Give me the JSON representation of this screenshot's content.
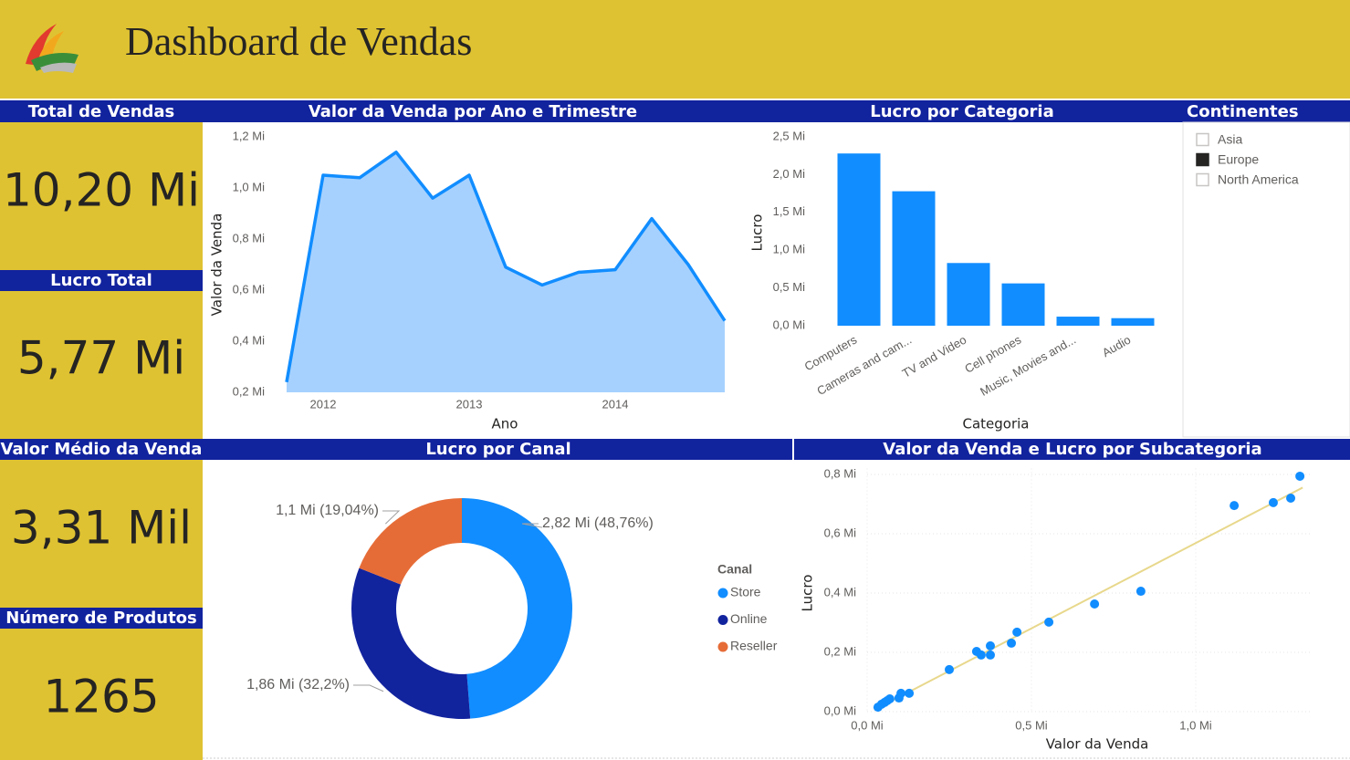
{
  "header": {
    "title": "Dashboard de Vendas"
  },
  "kpis": [
    {
      "label": "Total de Vendas",
      "value": "10,20 Mi"
    },
    {
      "label": "Lucro Total",
      "value": "5,77 Mi"
    },
    {
      "label": "Valor Médio da Venda",
      "value": "3,31 Mil"
    },
    {
      "label": "Número de Produtos",
      "value": "1265"
    }
  ],
  "slicer": {
    "title": "Continentes",
    "items": [
      {
        "label": "Asia",
        "selected": false
      },
      {
        "label": "Europe",
        "selected": true
      },
      {
        "label": "North America",
        "selected": false
      }
    ]
  },
  "chart_data": [
    {
      "type": "area",
      "title": "Valor da Venda por Ano e Trimestre",
      "x_label": "Ano",
      "y_label": "Valor da Venda",
      "categories": [
        null,
        "2012",
        null,
        null,
        null,
        "2013",
        null,
        null,
        null,
        "2014",
        null,
        null,
        null
      ],
      "values": [
        0.24,
        1.05,
        1.04,
        1.14,
        0.96,
        1.05,
        0.69,
        0.62,
        0.67,
        0.68,
        0.88,
        0.7,
        0.48
      ],
      "color": "#118DFF",
      "fill": "#A6D1FE",
      "ylim": [
        0.2,
        1.2
      ],
      "yticks": [
        {
          "value": 0.2,
          "label": "0,2 Mi"
        },
        {
          "value": 0.4,
          "label": "0,4 Mi"
        },
        {
          "value": 0.6,
          "label": "0,6 Mi"
        },
        {
          "value": 0.8,
          "label": "0,8 Mi"
        },
        {
          "value": 1.0,
          "label": "1,0 Mi"
        },
        {
          "value": 1.2,
          "label": "1,2 Mi"
        }
      ]
    },
    {
      "type": "bar",
      "title": "Lucro por Categoria",
      "x_label": "Categoria",
      "y_label": "Lucro",
      "categories": [
        "Computers",
        "Cameras and cam...",
        "TV and Video",
        "Cell phones",
        "Music, Movies and...",
        "Audio"
      ],
      "values": [
        2.28,
        1.78,
        0.83,
        0.56,
        0.12,
        0.1
      ],
      "color": "#118DFF",
      "ylim": [
        0,
        2.5
      ],
      "yticks": [
        {
          "value": 0,
          "label": "0,0 Mi"
        },
        {
          "value": 0.5,
          "label": "0,5 Mi"
        },
        {
          "value": 1.0,
          "label": "1,0 Mi"
        },
        {
          "value": 1.5,
          "label": "1,5 Mi"
        },
        {
          "value": 2.0,
          "label": "2,0 Mi"
        },
        {
          "value": 2.5,
          "label": "2,5 Mi"
        }
      ]
    },
    {
      "type": "donut",
      "title": "Lucro por Canal",
      "legend_title": "Canal",
      "categories": [
        "Store",
        "Online",
        "Reseller"
      ],
      "values": [
        2.82,
        1.86,
        1.1
      ],
      "value_labels": [
        "2,82 Mi (48,76%)",
        "1,86 Mi (32,2%)",
        "1,1 Mi (19,04%)"
      ],
      "colors": [
        "#118DFF",
        "#12239E",
        "#E66C37"
      ]
    },
    {
      "type": "scatter",
      "title": "Valor da Venda e Lucro por Subcategoria",
      "x_label": "Valor da Venda",
      "y_label": "Lucro",
      "x": [
        0.033,
        0.044,
        0.053,
        0.061,
        0.069,
        0.097,
        0.103,
        0.128,
        0.25,
        0.333,
        0.347,
        0.375,
        0.375,
        0.439,
        0.456,
        0.553,
        0.692,
        0.833,
        1.117,
        1.236,
        1.289,
        1.317
      ],
      "values": [
        0.015,
        0.025,
        0.031,
        0.037,
        0.043,
        0.046,
        0.062,
        0.062,
        0.142,
        0.203,
        0.191,
        0.191,
        0.222,
        0.231,
        0.268,
        0.302,
        0.363,
        0.406,
        0.695,
        0.705,
        0.72,
        0.794
      ],
      "color": "#118DFF",
      "trendline": true,
      "trend_color": "#E8D88C",
      "grid": true,
      "xlim": [
        0,
        1.35
      ],
      "ylim": [
        0,
        0.82
      ],
      "xticks": [
        {
          "value": 0,
          "label": "0,0 Mi"
        },
        {
          "value": 0.5,
          "label": "0,5 Mi"
        },
        {
          "value": 1.0,
          "label": "1,0 Mi"
        }
      ],
      "yticks": [
        {
          "value": 0,
          "label": "0,0 Mi"
        },
        {
          "value": 0.2,
          "label": "0,2 Mi"
        },
        {
          "value": 0.4,
          "label": "0,4 Mi"
        },
        {
          "value": 0.6,
          "label": "0,6 Mi"
        },
        {
          "value": 0.8,
          "label": "0,8 Mi"
        }
      ]
    }
  ]
}
